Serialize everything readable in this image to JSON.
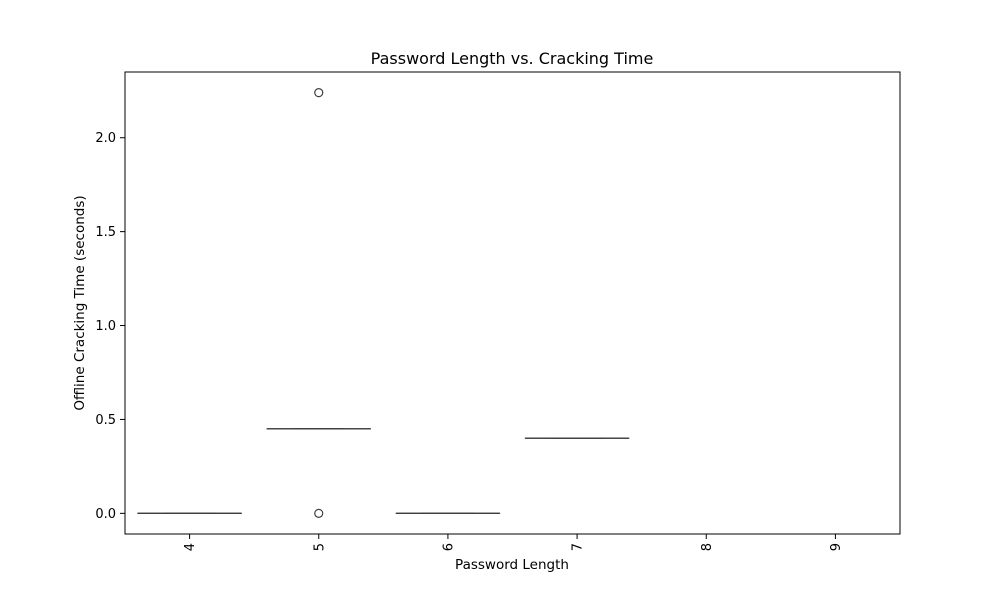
{
  "chart_data": {
    "type": "box",
    "title": "Password Length vs. Cracking Time",
    "xlabel": "Password Length",
    "ylabel": "Offline Cracking Time (seconds)",
    "categories": [
      "4",
      "5",
      "6",
      "7",
      "8",
      "9"
    ],
    "ylim": [
      -0.11,
      2.35
    ],
    "yticks": [
      0.0,
      0.5,
      1.0,
      1.5,
      2.0
    ],
    "ytick_labels": [
      "0.0",
      "0.5",
      "1.0",
      "1.5",
      "2.0"
    ],
    "x_tick_rotation": "vertical",
    "grid": false,
    "boxes": [
      {
        "category": "4",
        "q1": 0.0,
        "median": 0.0,
        "q3": 0.0,
        "whisker_low": 0.0,
        "whisker_high": 0.0,
        "outliers": []
      },
      {
        "category": "5",
        "q1": 0.45,
        "median": 0.45,
        "q3": 0.45,
        "whisker_low": 0.45,
        "whisker_high": 0.45,
        "outliers": [
          2.24,
          0.0
        ]
      },
      {
        "category": "6",
        "q1": 0.0,
        "median": 0.0,
        "q3": 0.0,
        "whisker_low": 0.0,
        "whisker_high": 0.0,
        "outliers": []
      },
      {
        "category": "7",
        "q1": 0.4,
        "median": 0.4,
        "q3": 0.4,
        "whisker_low": 0.4,
        "whisker_high": 0.4,
        "outliers": []
      }
    ],
    "colors": {
      "box_line": "#3f3f3f",
      "axis": "#000000",
      "background": "#ffffff"
    }
  }
}
